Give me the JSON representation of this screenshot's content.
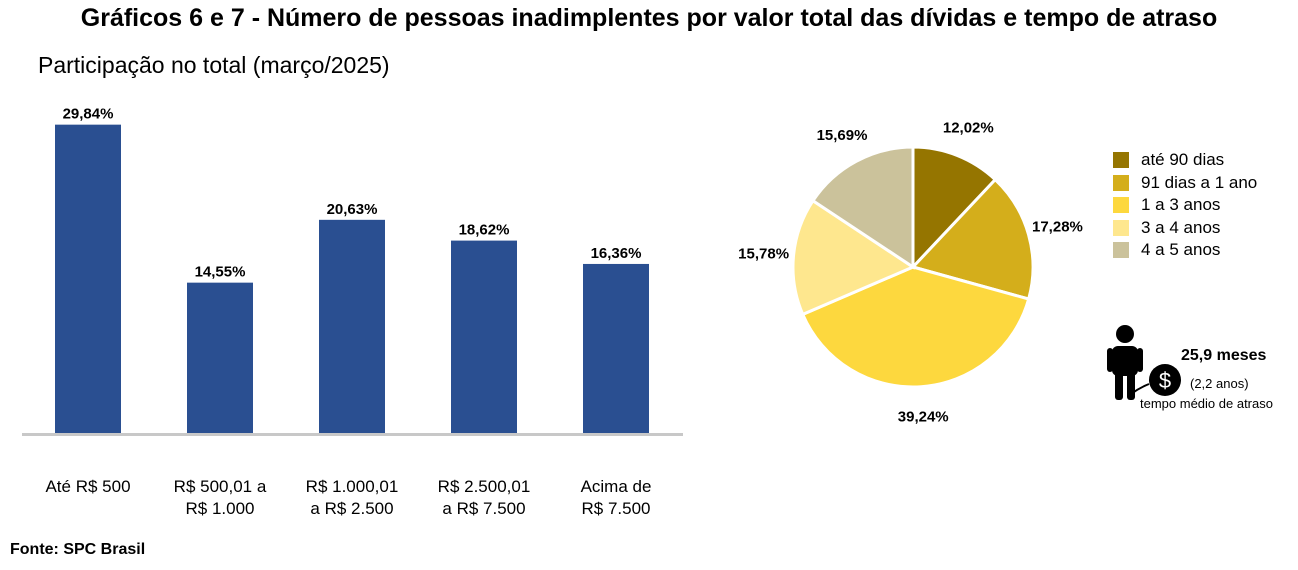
{
  "title": "Gráficos 6 e 7 - Número de pessoas inadimplentes por valor total das dívidas e tempo de atraso",
  "subtitle": "Participação no total (março/2025)",
  "source": "Fonte: SPC Brasil",
  "chart_data": [
    {
      "type": "bar",
      "categories": [
        [
          "Até R$ 500"
        ],
        [
          "R$ 500,01 a",
          "R$ 1.000"
        ],
        [
          "R$ 1.000,01",
          "a R$ 2.500"
        ],
        [
          "R$ 2.500,01",
          "a R$ 7.500"
        ],
        [
          "Acima de",
          "R$ 7.500"
        ]
      ],
      "values": [
        29.84,
        14.55,
        20.63,
        18.62,
        16.36
      ],
      "value_labels": [
        "29,84%",
        "14,55%",
        "20,63%",
        "18,62%",
        "16,36%"
      ],
      "ylim": [
        0,
        30
      ],
      "bar_color": "#2A4F91",
      "grid": false
    },
    {
      "type": "pie",
      "labels": [
        "até 90 dias",
        "91 dias a 1 ano",
        "1 a 3 anos",
        "3 a 4 anos",
        "4 a 5 anos"
      ],
      "values": [
        12.02,
        17.28,
        39.24,
        15.78,
        15.69
      ],
      "value_labels": [
        "12,02%",
        "17,28%",
        "39,24%",
        "15,78%",
        "15,69%"
      ],
      "colors": [
        "#957500",
        "#D4AE1B",
        "#FDD83E",
        "#FEE78E",
        "#CBC29B"
      ],
      "legend_position": "right"
    }
  ],
  "legend": {
    "items": [
      {
        "label": "até 90 dias",
        "color": "#957500"
      },
      {
        "label": "91 dias a 1 ano",
        "color": "#D4AE1B"
      },
      {
        "label": "1 a 3 anos",
        "color": "#FDD83E"
      },
      {
        "label": "3 a 4 anos",
        "color": "#FEE78E"
      },
      {
        "label": "4 a 5 anos",
        "color": "#CBC29B"
      }
    ]
  },
  "average": {
    "icon": "person-debt-icon",
    "value": "25,9 meses",
    "years": "(2,2 anos)",
    "description": "tempo médio de atraso"
  }
}
